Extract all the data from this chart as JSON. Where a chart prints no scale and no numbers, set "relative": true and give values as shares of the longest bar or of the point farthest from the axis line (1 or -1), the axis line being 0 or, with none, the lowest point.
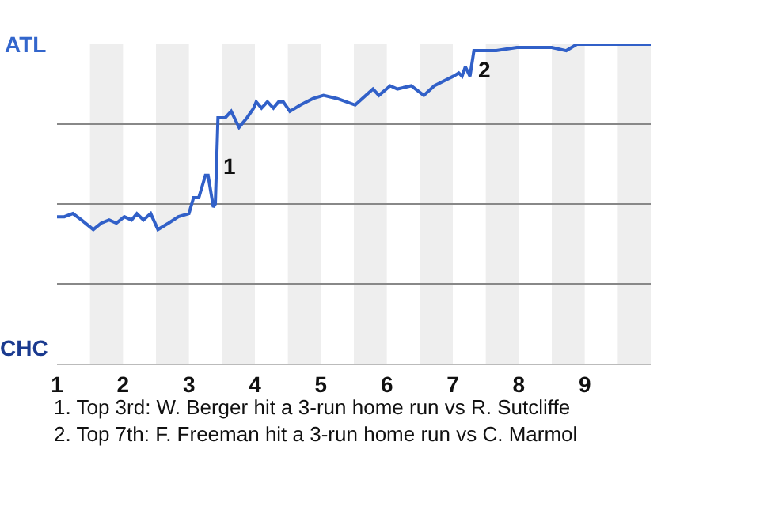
{
  "chart_data": {
    "type": "line",
    "relative": true,
    "grid": "y",
    "marker": "none",
    "line_style": "solid",
    "x": [
      1,
      1.11,
      1.24,
      1.37,
      1.55,
      1.67,
      1.79,
      1.9,
      2.02,
      2.13,
      2.21,
      2.31,
      2.42,
      2.53,
      2.69,
      2.84,
      3,
      3.07,
      3.15,
      3.25,
      3.29,
      3.37,
      3.4,
      3.44,
      3.55,
      3.64,
      3.76,
      3.88,
      3.98,
      4.02,
      4.1,
      4.19,
      4.28,
      4.36,
      4.43,
      4.53,
      4.69,
      4.88,
      5.04,
      5.25,
      5.52,
      5.79,
      5.88,
      6.05,
      6.16,
      6.37,
      6.56,
      6.72,
      6.91,
      7.01,
      7.09,
      7.14,
      7.19,
      7.26,
      7.32,
      7.66,
      7.97,
      8.5,
      8.72,
      8.88,
      10
    ],
    "series": [
      {
        "color": "#3160c8",
        "values": [
          0.46,
          0.46,
          0.47,
          0.45,
          0.42,
          0.44,
          0.45,
          0.44,
          0.46,
          0.45,
          0.47,
          0.45,
          0.47,
          0.42,
          0.44,
          0.46,
          0.47,
          0.52,
          0.52,
          0.59,
          0.59,
          0.49,
          0.5,
          0.77,
          0.77,
          0.79,
          0.74,
          0.77,
          0.8,
          0.82,
          0.8,
          0.82,
          0.8,
          0.82,
          0.82,
          0.79,
          0.81,
          0.83,
          0.84,
          0.83,
          0.81,
          0.86,
          0.84,
          0.87,
          0.86,
          0.87,
          0.84,
          0.87,
          0.89,
          0.9,
          0.91,
          0.9,
          0.93,
          0.9,
          0.98,
          0.98,
          0.99,
          0.99,
          0.98,
          1.0,
          1.0
        ]
      }
    ],
    "xlim": [
      1,
      10
    ],
    "xticks": [
      1,
      2,
      3,
      4,
      5,
      6,
      7,
      8,
      9
    ],
    "bands": [
      {
        "axis": "x",
        "from": 1.5,
        "to": 2,
        "color": "#eeeeee"
      },
      {
        "axis": "x",
        "from": 2.5,
        "to": 3,
        "color": "#eeeeee"
      },
      {
        "axis": "x",
        "from": 3.5,
        "to": 4,
        "color": "#eeeeee"
      },
      {
        "axis": "x",
        "from": 4.5,
        "to": 5,
        "color": "#eeeeee"
      },
      {
        "axis": "x",
        "from": 5.5,
        "to": 6,
        "color": "#eeeeee"
      },
      {
        "axis": "x",
        "from": 6.5,
        "to": 7,
        "color": "#eeeeee"
      },
      {
        "axis": "x",
        "from": 7.5,
        "to": 8,
        "color": "#eeeeee"
      },
      {
        "axis": "x",
        "from": 8.5,
        "to": 9,
        "color": "#eeeeee"
      },
      {
        "axis": "x",
        "from": 9.5,
        "to": 10,
        "color": "#eeeeee"
      }
    ],
    "annotations": [
      "ATL",
      "CHC",
      {
        "text": "1",
        "x": 3.44,
        "y": 0.62
      },
      {
        "text": "2",
        "x": 7.32,
        "y": 0.92
      },
      "1. Top 3rd: W. Berger hit a 3-run home run vs R. Sutcliffe",
      "2. Top 7th: F. Freeman hit a 3-run home run vs C. Marmol"
    ]
  }
}
